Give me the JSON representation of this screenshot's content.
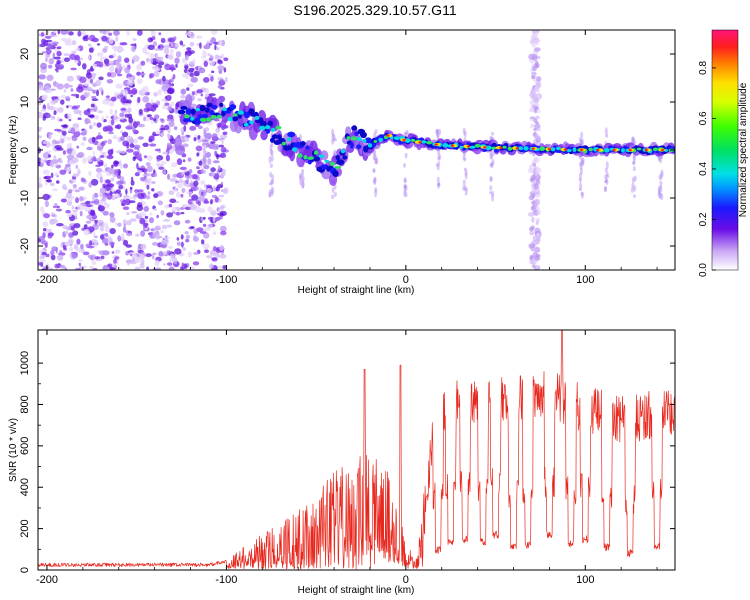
{
  "title": "S196.2025.329.10.57.G11",
  "colors": {
    "snr_line": "#e8281e",
    "axis": "#000000",
    "speckle": "#8a3cf0"
  },
  "chart_data": [
    {
      "type": "heatmap",
      "name": "spectrogram",
      "xlabel": "Height of straight line (km)",
      "ylabel": "Frequency (Hz)",
      "xlim": [
        -205,
        150
      ],
      "ylim": [
        -25,
        25
      ],
      "xticks": [
        -200,
        -100,
        0,
        100
      ],
      "yticks": [
        -20,
        -10,
        0,
        10,
        20
      ],
      "xtick_labels": [
        "-200",
        "-100",
        "0",
        "100"
      ],
      "ytick_labels": [
        "-20",
        "-10",
        "0",
        "10",
        "20"
      ],
      "colorbar": {
        "label": "Normalized spectral amplitude",
        "range": [
          0,
          0.95
        ],
        "ticks": [
          0.0,
          0.2,
          0.4,
          0.6,
          0.8
        ],
        "tick_labels": [
          "0.0",
          "0.2",
          "0.4",
          "0.6",
          "0.8"
        ]
      },
      "noise_region_x": [
        -205,
        -100
      ],
      "ridge": [
        {
          "x": -125,
          "f": 8
        },
        {
          "x": -100,
          "f": 7.5
        },
        {
          "x": -85,
          "f": 6
        },
        {
          "x": -70,
          "f": 3
        },
        {
          "x": -55,
          "f": -1
        },
        {
          "x": -40,
          "f": -4
        },
        {
          "x": -30,
          "f": 3
        },
        {
          "x": -20,
          "f": 1
        },
        {
          "x": -10,
          "f": 3
        },
        {
          "x": 0,
          "f": 2
        },
        {
          "x": 20,
          "f": 1
        },
        {
          "x": 50,
          "f": 0.5
        },
        {
          "x": 100,
          "f": 0
        },
        {
          "x": 150,
          "f": 0
        }
      ],
      "vertical_stripes_x": [
        -112,
        -75,
        -58,
        -40,
        -17,
        0,
        18,
        33,
        48,
        72,
        98,
        112,
        127,
        142
      ]
    },
    {
      "type": "line",
      "name": "snr",
      "xlabel": "Height of straight line (km)",
      "ylabel": "SNR (10 * v/v)",
      "xlim": [
        -205,
        150
      ],
      "ylim": [
        0,
        1160
      ],
      "xticks": [
        -200,
        -100,
        0,
        100
      ],
      "yticks": [
        0,
        200,
        400,
        600,
        800,
        1000
      ],
      "xtick_labels": [
        "-200",
        "-100",
        "0",
        "100"
      ],
      "ytick_labels": [
        "0",
        "200",
        "400",
        "600",
        "800",
        "1000"
      ],
      "envelope": [
        {
          "x": -205,
          "y": 25
        },
        {
          "x": -110,
          "y": 25
        },
        {
          "x": -100,
          "y": 40
        },
        {
          "x": -90,
          "y": 100
        },
        {
          "x": -80,
          "y": 150
        },
        {
          "x": -70,
          "y": 200
        },
        {
          "x": -60,
          "y": 250
        },
        {
          "x": -50,
          "y": 330
        },
        {
          "x": -40,
          "y": 420
        },
        {
          "x": -30,
          "y": 460
        },
        {
          "x": -20,
          "y": 500
        },
        {
          "x": -10,
          "y": 420
        },
        {
          "x": 0,
          "y": 150
        },
        {
          "x": 5,
          "y": 30
        },
        {
          "x": 10,
          "y": 250
        },
        {
          "x": 15,
          "y": 650
        },
        {
          "x": 25,
          "y": 800
        },
        {
          "x": 50,
          "y": 820
        },
        {
          "x": 80,
          "y": 850
        },
        {
          "x": 100,
          "y": 780
        },
        {
          "x": 120,
          "y": 720
        },
        {
          "x": 150,
          "y": 780
        }
      ],
      "peaks": [
        {
          "x": -23,
          "y": 970
        },
        {
          "x": -3,
          "y": 990
        },
        {
          "x": 87,
          "y": 1160
        }
      ],
      "dips": [
        {
          "x": 18,
          "y": 80
        },
        {
          "x": 25,
          "y": 120
        },
        {
          "x": 33,
          "y": 130
        },
        {
          "x": 43,
          "y": 120
        },
        {
          "x": 50,
          "y": 150
        },
        {
          "x": 60,
          "y": 90
        },
        {
          "x": 68,
          "y": 100
        },
        {
          "x": 80,
          "y": 150
        },
        {
          "x": 92,
          "y": 110
        },
        {
          "x": 100,
          "y": 130
        },
        {
          "x": 112,
          "y": 90
        },
        {
          "x": 125,
          "y": 60
        },
        {
          "x": 140,
          "y": 90
        }
      ]
    }
  ]
}
